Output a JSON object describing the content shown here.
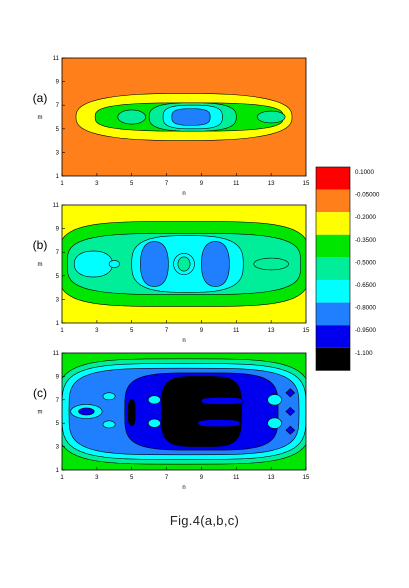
{
  "caption": "Fig.4(a,b,c)",
  "chart_data": [
    {
      "type": "heatmap",
      "panel_label": "(a)",
      "xlabel": "n",
      "ylabel": "m",
      "xticks": [
        1,
        3,
        5,
        7,
        9,
        11,
        13,
        15
      ],
      "yticks": [
        1,
        3,
        5,
        7,
        9,
        11
      ],
      "xlim": [
        1,
        15
      ],
      "ylim": [
        1,
        11
      ],
      "background_level": 1,
      "regions": [
        {
          "level": 2,
          "cx": 8.0,
          "cy": 6.0,
          "rx": 6.2,
          "ry": 2.0,
          "p": 2.6
        },
        {
          "level": 3,
          "cx": 8.3,
          "cy": 6.0,
          "rx": 5.4,
          "ry": 1.2,
          "p": 3.0
        },
        {
          "level": 4,
          "cx": 5.0,
          "cy": 6.0,
          "rx": 0.8,
          "ry": 0.6,
          "p": 2.0
        },
        {
          "level": 4,
          "cx": 13.0,
          "cy": 6.0,
          "rx": 0.8,
          "ry": 0.5,
          "p": 2.0
        },
        {
          "level": 4,
          "cx": 8.5,
          "cy": 6.0,
          "rx": 2.5,
          "ry": 1.2,
          "p": 2.8
        },
        {
          "level": 5,
          "cx": 8.5,
          "cy": 6.0,
          "rx": 1.7,
          "ry": 1.0,
          "p": 3.0
        },
        {
          "level": 6,
          "cx": 8.4,
          "cy": 6.0,
          "rx": 1.1,
          "ry": 0.7,
          "p": 3.0
        }
      ]
    },
    {
      "type": "heatmap",
      "panel_label": "(b)",
      "xlabel": "n",
      "ylabel": "m",
      "xticks": [
        1,
        3,
        5,
        7,
        9,
        11,
        13,
        15
      ],
      "yticks": [
        1,
        3,
        5,
        7,
        9,
        11
      ],
      "xlim": [
        1,
        15
      ],
      "ylim": [
        1,
        11
      ],
      "background_level": 2,
      "regions": [
        {
          "level": 3,
          "cx": 8.0,
          "cy": 6.0,
          "rx": 7.2,
          "ry": 3.6,
          "p": 4.0
        },
        {
          "level": 4,
          "cx": 8.0,
          "cy": 6.0,
          "rx": 6.7,
          "ry": 2.6,
          "p": 3.5
        },
        {
          "level": 5,
          "cx": 8.2,
          "cy": 6.0,
          "rx": 3.2,
          "ry": 2.4,
          "p": 3.0
        },
        {
          "level": 5,
          "cx": 2.8,
          "cy": 6.0,
          "rx": 1.1,
          "ry": 1.1,
          "p": 2.2
        },
        {
          "level": 4,
          "cx": 13.0,
          "cy": 6.0,
          "rx": 1.0,
          "ry": 0.5,
          "p": 2.0
        },
        {
          "level": 6,
          "cx": 6.3,
          "cy": 6.0,
          "rx": 0.8,
          "ry": 1.9,
          "p": 2.4
        },
        {
          "level": 6,
          "cx": 9.8,
          "cy": 6.0,
          "rx": 0.8,
          "ry": 1.9,
          "p": 2.4
        },
        {
          "level": 5,
          "cx": 8.0,
          "cy": 6.0,
          "rx": 0.6,
          "ry": 0.9,
          "p": 2.0
        },
        {
          "level": 4,
          "cx": 8.0,
          "cy": 6.0,
          "rx": 0.35,
          "ry": 0.6,
          "p": 2.0
        },
        {
          "level": 5,
          "cx": 4.0,
          "cy": 6.0,
          "rx": 0.3,
          "ry": 0.3,
          "p": 2.0
        }
      ]
    },
    {
      "type": "heatmap",
      "panel_label": "(c)",
      "xlabel": "n",
      "ylabel": "m",
      "xticks": [
        1,
        3,
        5,
        7,
        9,
        11,
        13,
        15
      ],
      "yticks": [
        1,
        3,
        5,
        7,
        9,
        11
      ],
      "xlim": [
        1,
        15
      ],
      "ylim": [
        1,
        11
      ],
      "background_level": 3,
      "regions": [
        {
          "level": 4,
          "cx": 8.0,
          "cy": 6.0,
          "rx": 7.3,
          "ry": 4.5,
          "p": 4.0
        },
        {
          "level": 5,
          "cx": 8.0,
          "cy": 6.0,
          "rx": 7.0,
          "ry": 4.1,
          "p": 4.0
        },
        {
          "level": 6,
          "cx": 8.0,
          "cy": 6.0,
          "rx": 6.6,
          "ry": 3.7,
          "p": 4.0
        },
        {
          "level": 7,
          "cx": 9.0,
          "cy": 6.0,
          "rx": 4.4,
          "ry": 3.3,
          "p": 4.0
        },
        {
          "level": 8,
          "cx": 9.0,
          "cy": 6.0,
          "rx": 2.3,
          "ry": 3.0,
          "p": 4.0
        },
        {
          "level": 7,
          "cx": 10.2,
          "cy": 6.9,
          "rx": 1.2,
          "ry": 0.3,
          "p": 3.0
        },
        {
          "level": 7,
          "cx": 10.0,
          "cy": 5.0,
          "rx": 1.2,
          "ry": 0.3,
          "p": 3.0
        },
        {
          "level": 8,
          "cx": 5.0,
          "cy": 5.9,
          "rx": 0.2,
          "ry": 1.1,
          "p": 3.0
        },
        {
          "level": 5,
          "cx": 2.4,
          "cy": 6.0,
          "rx": 0.9,
          "ry": 0.6,
          "p": 2.0
        },
        {
          "level": 7,
          "cx": 2.4,
          "cy": 6.0,
          "rx": 0.45,
          "ry": 0.3,
          "p": 2.0
        },
        {
          "level": 5,
          "cx": 3.7,
          "cy": 7.3,
          "rx": 0.35,
          "ry": 0.3,
          "p": 2.0
        },
        {
          "level": 5,
          "cx": 3.7,
          "cy": 4.9,
          "rx": 0.35,
          "ry": 0.3,
          "p": 2.0
        },
        {
          "level": 5,
          "cx": 6.3,
          "cy": 7.0,
          "rx": 0.35,
          "ry": 0.35,
          "p": 2.0
        },
        {
          "level": 5,
          "cx": 6.3,
          "cy": 5.0,
          "rx": 0.35,
          "ry": 0.35,
          "p": 2.0
        },
        {
          "level": 5,
          "cx": 13.2,
          "cy": 7.0,
          "rx": 0.4,
          "ry": 0.45,
          "p": 2.0
        },
        {
          "level": 5,
          "cx": 13.2,
          "cy": 5.0,
          "rx": 0.4,
          "ry": 0.45,
          "p": 2.0
        },
        {
          "level": 7,
          "cx": 14.1,
          "cy": 7.6,
          "rx": 0.25,
          "ry": 0.35,
          "p": 1.0
        },
        {
          "level": 7,
          "cx": 14.1,
          "cy": 6.0,
          "rx": 0.25,
          "ry": 0.35,
          "p": 1.0
        },
        {
          "level": 7,
          "cx": 14.1,
          "cy": 4.4,
          "rx": 0.25,
          "ry": 0.35,
          "p": 1.0
        }
      ]
    }
  ],
  "colorbar": {
    "levels": [
      {
        "label": "0.1000",
        "color": "#ff0000"
      },
      {
        "label": "-0.05000",
        "color": "#ff7f1a"
      },
      {
        "label": "-0.2000",
        "color": "#ffff00"
      },
      {
        "label": "-0.3500",
        "color": "#00e600"
      },
      {
        "label": "-0.5000",
        "color": "#00ee99"
      },
      {
        "label": "-0.6500",
        "color": "#00ffff"
      },
      {
        "label": "-0.8000",
        "color": "#1f7fff"
      },
      {
        "label": "-0.9500",
        "color": "#0000ee"
      },
      {
        "label": "-1.100",
        "color": "#000000"
      }
    ]
  }
}
